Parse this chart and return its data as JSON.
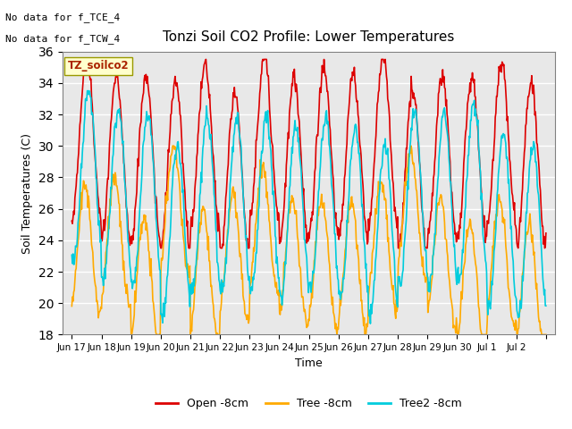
{
  "title": "Tonzi Soil CO2 Profile: Lower Temperatures",
  "ylabel": "Soil Temperatures (C)",
  "xlabel": "Time",
  "top_left_text1": "No data for f_TCE_4",
  "top_left_text2": "No data for f_TCW_4",
  "legend_label_text": "TZ_soilco2",
  "ylim": [
    18,
    36
  ],
  "yticks": [
    18,
    20,
    22,
    24,
    26,
    28,
    30,
    32,
    34,
    36
  ],
  "background_color": "#e8e8e8",
  "line_colors": {
    "open": "#dd0000",
    "tree": "#ffaa00",
    "tree2": "#00ccdd"
  },
  "legend_entries": [
    {
      "label": "Open -8cm",
      "color": "#dd0000"
    },
    {
      "label": "Tree -8cm",
      "color": "#ffaa00"
    },
    {
      "label": "Tree2 -8cm",
      "color": "#00ccdd"
    }
  ],
  "tick_positions": [
    0,
    1,
    2,
    3,
    4,
    5,
    6,
    7,
    8,
    9,
    10,
    11,
    12,
    13,
    14,
    15,
    16
  ],
  "tick_labels": [
    "Jun 17",
    "Jun 18",
    "Jun 19",
    "Jun 20",
    "Jun 21",
    "Jun 22",
    "Jun 23",
    "Jun 24",
    "Jun 25",
    "Jun 26",
    "Jun 27",
    "Jun 28",
    "Jun 29",
    "Jun 30",
    "Jul 1",
    "Jul 2",
    ""
  ],
  "num_days": 16
}
